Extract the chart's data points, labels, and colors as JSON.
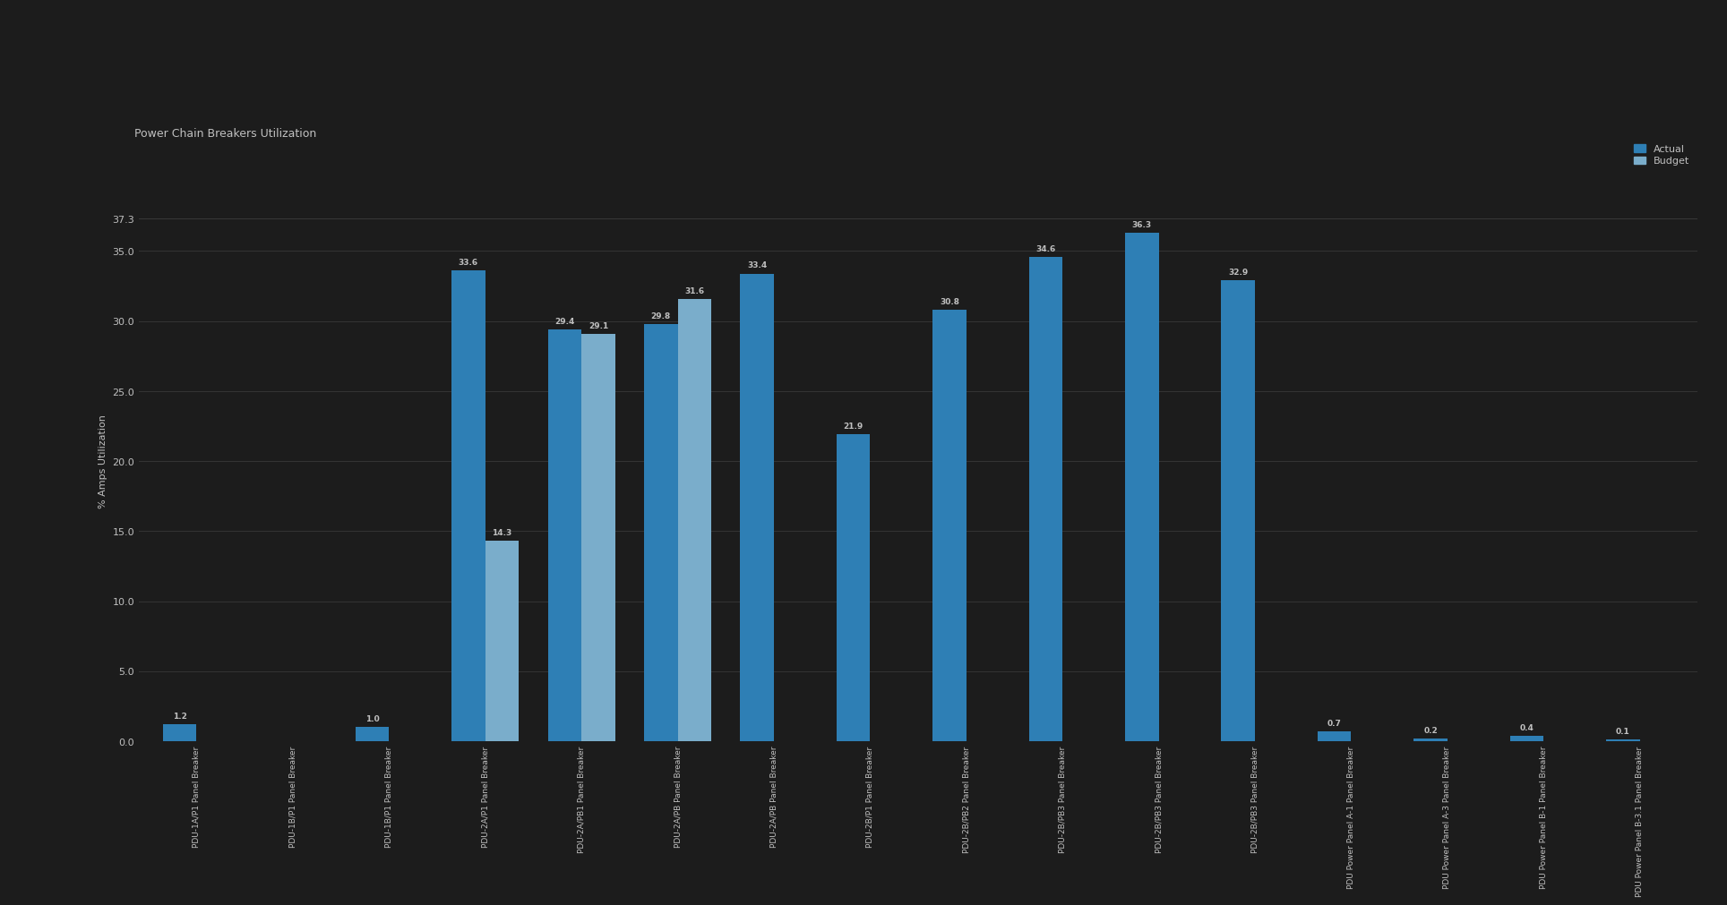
{
  "title": "Power Chain Breakers Utilization",
  "ylabel": "% Amps Utilization",
  "background_color": "#1c1c1c",
  "plot_bg_color": "#1c1c1c",
  "grid_color": "#383838",
  "text_color": "#c0c0c0",
  "actual_color": "#2e7fb5",
  "budget_color": "#7aadcb",
  "ylim": [
    0,
    40
  ],
  "yticks": [
    0.0,
    5.0,
    10.0,
    15.0,
    20.0,
    25.0,
    30.0,
    35.0,
    37.3
  ],
  "ytick_labels": [
    "0.0",
    "5.0",
    "10.0",
    "15.0",
    "20.0",
    "25.0",
    "30.0",
    "35.0",
    "37.3"
  ],
  "groups": [
    {
      "label": "PDU-1A/P1 Panel Breaker",
      "actual": 1.2,
      "budget": 0.0
    },
    {
      "label": "PDU-1B/P1 Panel Breaker",
      "actual": 0.0,
      "budget": 0.0
    },
    {
      "label": "PDU-1B/P1 Panel Breaker",
      "actual": 1.0,
      "budget": 0.0
    },
    {
      "label": "PDU-2A/P1 Panel Breaker",
      "actual": 33.6,
      "budget": 14.3
    },
    {
      "label": "PDU-2A/PB1 Panel Breaker",
      "actual": 29.4,
      "budget": 29.1
    },
    {
      "label": "PDU-2A/PB Panel Breaker",
      "actual": 29.8,
      "budget": 31.6
    },
    {
      "label": "PDU-2A/PB Panel Breaker",
      "actual": 33.4,
      "budget": 0.0
    },
    {
      "label": "PDU-2B/P1 Panel Breaker",
      "actual": 21.9,
      "budget": 0.0
    },
    {
      "label": "PDU-2B/PB2 Panel Breaker",
      "actual": 30.8,
      "budget": 0.0
    },
    {
      "label": "PDU-2B/PB3 Panel Breaker",
      "actual": 34.6,
      "budget": 0.0
    },
    {
      "label": "PDU-2B/PB3 Panel Breaker",
      "actual": 36.3,
      "budget": 0.0
    },
    {
      "label": "PDU-2B/PB3 Panel Breaker",
      "actual": 32.9,
      "budget": 0.0
    },
    {
      "label": "PDU Power Panel A-1 Panel Breaker",
      "actual": 0.7,
      "budget": 0.0
    },
    {
      "label": "PDU Power Panel A-3 Panel Breaker",
      "actual": 0.2,
      "budget": 0.0
    },
    {
      "label": "PDU Power Panel B-1 Panel Breaker",
      "actual": 0.4,
      "budget": 0.0
    },
    {
      "label": "PDU Power Panel B-3.1 Panel Breaker",
      "actual": 0.1,
      "budget": 0.0
    }
  ],
  "legend_actual": "Actual",
  "legend_budget": "Budget",
  "header_bg": "#2b2b2b",
  "toolbar_bg": "#1a1a1a",
  "panel_bg": "#252525"
}
